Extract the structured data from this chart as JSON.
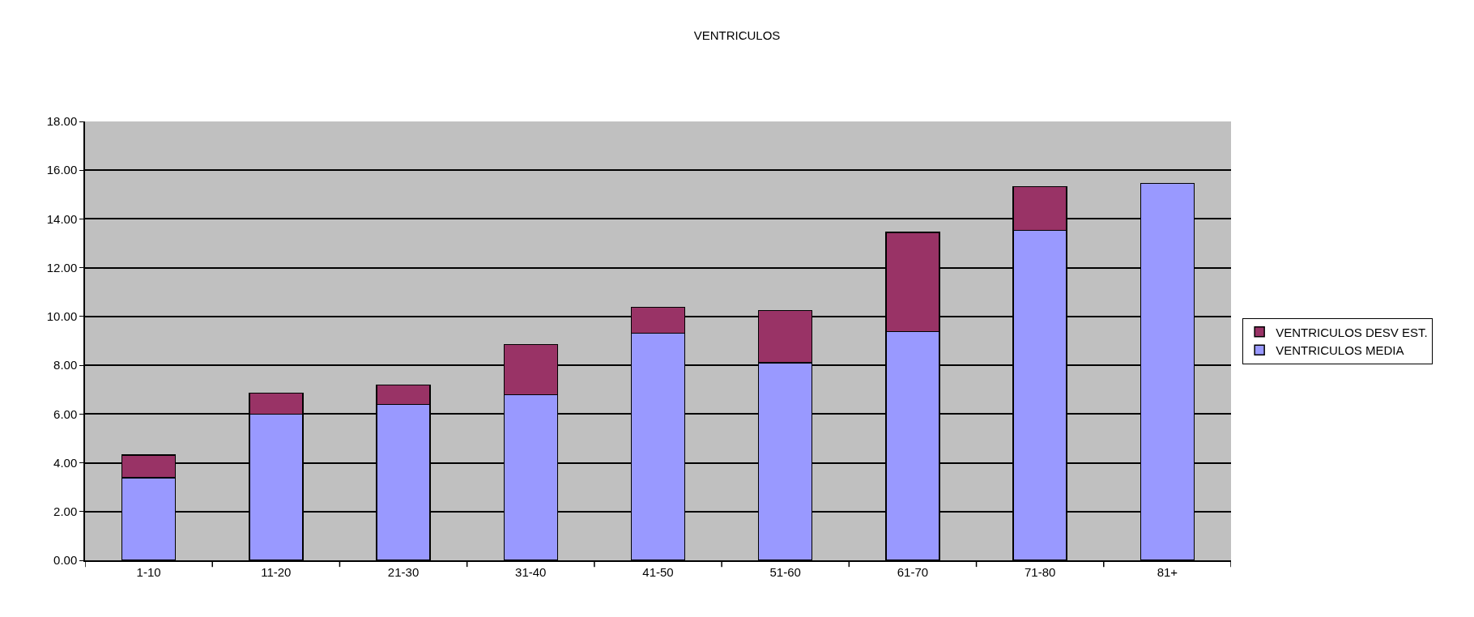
{
  "chart_data": {
    "type": "bar",
    "title": "VENTRICULOS",
    "stacked": true,
    "categories": [
      "1-10",
      "11-20",
      "21-30",
      "31-40",
      "41-50",
      "51-60",
      "61-70",
      "71-80",
      "81+"
    ],
    "series": [
      {
        "name": "VENTRICULOS MEDIA",
        "color": "#9999ff",
        "values": [
          3.39,
          6.0,
          6.4,
          6.79,
          9.31,
          8.11,
          9.38,
          13.53,
          15.46
        ]
      },
      {
        "name": "VENTRICULOS DESV EST.",
        "color": "#993366",
        "values": [
          0.92,
          0.86,
          0.79,
          2.06,
          1.07,
          2.14,
          4.07,
          1.8,
          null
        ]
      }
    ],
    "ylim": [
      0,
      18
    ],
    "yticks": [
      {
        "value": 0,
        "label": "0.00"
      },
      {
        "value": 2,
        "label": "2.00"
      },
      {
        "value": 4,
        "label": "4.00"
      },
      {
        "value": 6,
        "label": "6.00"
      },
      {
        "value": 8,
        "label": "8.00"
      },
      {
        "value": 10,
        "label": "10.00"
      },
      {
        "value": 12,
        "label": "12.00"
      },
      {
        "value": 14,
        "label": "14.00"
      },
      {
        "value": 16,
        "label": "16.00"
      },
      {
        "value": 18,
        "label": "18.00"
      }
    ],
    "grid": "y",
    "legend": "right"
  }
}
